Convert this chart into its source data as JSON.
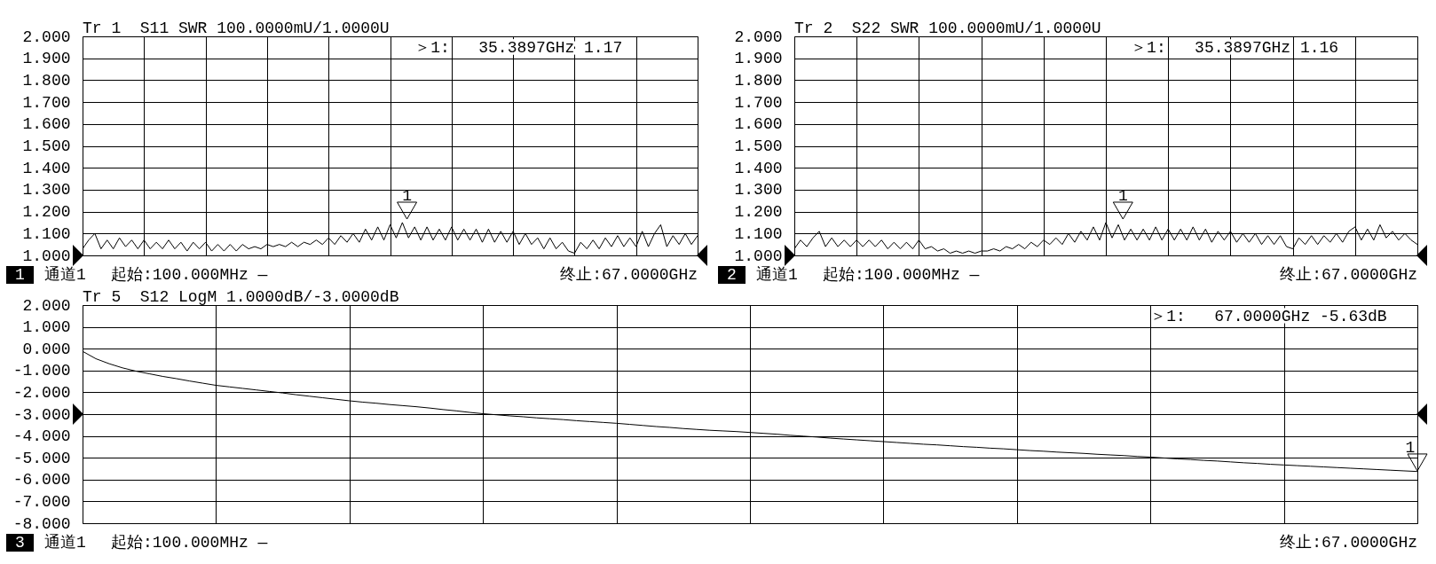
{
  "chart_data": [
    {
      "type": "line",
      "title": "Tr 1  S11 SWR 100.0000mU/1.0000U",
      "categories": [
        null,
        null,
        null,
        null,
        null,
        null,
        null,
        null,
        null,
        null,
        null,
        null,
        null,
        null,
        null,
        null,
        null,
        null,
        null,
        null,
        null,
        null,
        null,
        null,
        null,
        null,
        null,
        null,
        null,
        null,
        null,
        null,
        null,
        null,
        null,
        null,
        null,
        null,
        null,
        null,
        null,
        null,
        null,
        null,
        null,
        null,
        null,
        null,
        null,
        null,
        null,
        null,
        null,
        null,
        null,
        null,
        null,
        null,
        null,
        null,
        null,
        null,
        null,
        null,
        null,
        null,
        null,
        null,
        null,
        null,
        null,
        null,
        null,
        null,
        null,
        null,
        null,
        null,
        null,
        null,
        null,
        null,
        null,
        null,
        null,
        null,
        null,
        null,
        null,
        null,
        null,
        null,
        null,
        null,
        null,
        null,
        null,
        null,
        null,
        null,
        null
      ],
      "values": [
        1.03,
        1.07,
        1.1,
        1.03,
        1.07,
        1.03,
        1.08,
        1.04,
        1.07,
        1.03,
        1.07,
        1.03,
        1.06,
        1.03,
        1.07,
        1.03,
        1.06,
        1.02,
        1.06,
        1.03,
        1.06,
        1.02,
        1.05,
        1.02,
        1.05,
        1.02,
        1.05,
        1.03,
        1.04,
        1.03,
        1.05,
        1.04,
        1.05,
        1.04,
        1.06,
        1.04,
        1.06,
        1.05,
        1.07,
        1.05,
        1.08,
        1.05,
        1.09,
        1.06,
        1.1,
        1.06,
        1.12,
        1.07,
        1.13,
        1.07,
        1.14,
        1.08,
        1.15,
        1.08,
        1.13,
        1.07,
        1.13,
        1.07,
        1.12,
        1.07,
        1.13,
        1.07,
        1.12,
        1.07,
        1.12,
        1.06,
        1.12,
        1.06,
        1.11,
        1.06,
        1.11,
        1.05,
        1.1,
        1.05,
        1.08,
        1.03,
        1.08,
        1.03,
        1.06,
        1.02,
        1.01,
        1.06,
        1.03,
        1.07,
        1.03,
        1.08,
        1.04,
        1.09,
        1.04,
        1.08,
        1.04,
        1.11,
        1.04,
        1.1,
        1.14,
        1.04,
        1.09,
        1.05,
        1.1,
        1.05,
        1.09
      ],
      "color": "#000000",
      "ylim": [
        1,
        2
      ],
      "yticks": [
        {
          "value": 1,
          "label": "1.000"
        },
        {
          "value": 1.1,
          "label": "1.100"
        },
        {
          "value": 1.2,
          "label": "1.200"
        },
        {
          "value": 1.3,
          "label": "1.300"
        },
        {
          "value": 1.4,
          "label": "1.400"
        },
        {
          "value": 1.5,
          "label": "1.500"
        },
        {
          "value": 1.6,
          "label": "1.600"
        },
        {
          "value": 1.7,
          "label": "1.700"
        },
        {
          "value": 1.8,
          "label": "1.800"
        },
        {
          "value": 1.9,
          "label": "1.900"
        },
        {
          "value": 2,
          "label": "2.000"
        }
      ],
      "grid": true,
      "tick_labels": "y",
      "annotations": [
        "1",
        "通道1",
        "起始:100.000MHz —",
        "终止:67.0000GHz",
        "＞1:   35.3897GHz 1.17",
        "1"
      ]
    },
    {
      "type": "line",
      "title": "Tr 2  S22 SWR 100.0000mU/1.0000U",
      "categories": [
        null,
        null,
        null,
        null,
        null,
        null,
        null,
        null,
        null,
        null,
        null,
        null,
        null,
        null,
        null,
        null,
        null,
        null,
        null,
        null,
        null,
        null,
        null,
        null,
        null,
        null,
        null,
        null,
        null,
        null,
        null,
        null,
        null,
        null,
        null,
        null,
        null,
        null,
        null,
        null,
        null,
        null,
        null,
        null,
        null,
        null,
        null,
        null,
        null,
        null,
        null,
        null,
        null,
        null,
        null,
        null,
        null,
        null,
        null,
        null,
        null,
        null,
        null,
        null,
        null,
        null,
        null,
        null,
        null,
        null,
        null,
        null,
        null,
        null,
        null,
        null,
        null,
        null,
        null,
        null,
        null,
        null,
        null,
        null,
        null,
        null,
        null,
        null,
        null,
        null,
        null,
        null,
        null,
        null,
        null,
        null,
        null,
        null,
        null,
        null,
        null
      ],
      "values": [
        1.03,
        1.07,
        1.04,
        1.08,
        1.11,
        1.04,
        1.08,
        1.04,
        1.07,
        1.04,
        1.07,
        1.04,
        1.07,
        1.04,
        1.07,
        1.03,
        1.06,
        1.03,
        1.06,
        1.03,
        1.07,
        1.03,
        1.04,
        1.02,
        1.03,
        1.01,
        1.02,
        1.01,
        1.02,
        1.01,
        1.02,
        1.02,
        1.03,
        1.02,
        1.04,
        1.03,
        1.05,
        1.03,
        1.06,
        1.04,
        1.07,
        1.05,
        1.08,
        1.05,
        1.1,
        1.06,
        1.11,
        1.07,
        1.13,
        1.07,
        1.15,
        1.08,
        1.14,
        1.07,
        1.12,
        1.07,
        1.12,
        1.07,
        1.13,
        1.07,
        1.12,
        1.07,
        1.12,
        1.07,
        1.13,
        1.07,
        1.12,
        1.06,
        1.11,
        1.07,
        1.11,
        1.06,
        1.1,
        1.06,
        1.1,
        1.05,
        1.09,
        1.05,
        1.09,
        1.04,
        1.03,
        1.08,
        1.05,
        1.09,
        1.05,
        1.09,
        1.06,
        1.1,
        1.06,
        1.11,
        1.13,
        1.07,
        1.12,
        1.07,
        1.14,
        1.08,
        1.11,
        1.07,
        1.1,
        1.07,
        1.05
      ],
      "color": "#000000",
      "ylim": [
        1,
        2
      ],
      "yticks": [
        {
          "value": 1,
          "label": "1.000"
        },
        {
          "value": 1.1,
          "label": "1.100"
        },
        {
          "value": 1.2,
          "label": "1.200"
        },
        {
          "value": 1.3,
          "label": "1.300"
        },
        {
          "value": 1.4,
          "label": "1.400"
        },
        {
          "value": 1.5,
          "label": "1.500"
        },
        {
          "value": 1.6,
          "label": "1.600"
        },
        {
          "value": 1.7,
          "label": "1.700"
        },
        {
          "value": 1.8,
          "label": "1.800"
        },
        {
          "value": 1.9,
          "label": "1.900"
        },
        {
          "value": 2,
          "label": "2.000"
        }
      ],
      "grid": true,
      "tick_labels": "y",
      "annotations": [
        "2",
        "通道1",
        "起始:100.000MHz —",
        "终止:67.0000GHz",
        "＞1:   35.3897GHz 1.16",
        "1"
      ]
    },
    {
      "type": "line",
      "title": "Tr 5  S12 LogM 1.0000dB/-3.0000dB",
      "categories": [
        null,
        null,
        null,
        null,
        null,
        null,
        null,
        null,
        null,
        null,
        null,
        null,
        null,
        null,
        null,
        null,
        null,
        null,
        null,
        null,
        null,
        null,
        null,
        null,
        null,
        null,
        null,
        null,
        null,
        null,
        null,
        null,
        null,
        null,
        null,
        null,
        null,
        null,
        null,
        null,
        null,
        null,
        null,
        null,
        null,
        null,
        null,
        null,
        null,
        null,
        null,
        null,
        null,
        null,
        null,
        null,
        null,
        null,
        null,
        null,
        null,
        null,
        null,
        null,
        null,
        null,
        null,
        null,
        null,
        null,
        null,
        null,
        null,
        null,
        null,
        null,
        null,
        null,
        null,
        null,
        null,
        null,
        null,
        null,
        null,
        null,
        null,
        null,
        null,
        null,
        null,
        null,
        null,
        null,
        null,
        null,
        null,
        null,
        null,
        null,
        null
      ],
      "values": [
        -0.12,
        -0.46,
        -0.69,
        -0.88,
        -1.03,
        -1.15,
        -1.27,
        -1.37,
        -1.48,
        -1.58,
        -1.68,
        -1.75,
        -1.82,
        -1.89,
        -1.96,
        -2.03,
        -2.11,
        -2.18,
        -2.25,
        -2.32,
        -2.39,
        -2.45,
        -2.5,
        -2.56,
        -2.61,
        -2.66,
        -2.72,
        -2.79,
        -2.85,
        -2.92,
        -2.98,
        -3.03,
        -3.08,
        -3.12,
        -3.17,
        -3.21,
        -3.25,
        -3.3,
        -3.34,
        -3.38,
        -3.42,
        -3.47,
        -3.52,
        -3.57,
        -3.61,
        -3.66,
        -3.7,
        -3.74,
        -3.77,
        -3.8,
        -3.84,
        -3.88,
        -3.92,
        -3.97,
        -4.01,
        -4.05,
        -4.1,
        -4.14,
        -4.18,
        -4.22,
        -4.26,
        -4.3,
        -4.34,
        -4.38,
        -4.41,
        -4.45,
        -4.49,
        -4.52,
        -4.56,
        -4.59,
        -4.63,
        -4.67,
        -4.7,
        -4.74,
        -4.77,
        -4.8,
        -4.84,
        -4.87,
        -4.9,
        -4.94,
        -4.97,
        -5.01,
        -5.05,
        -5.08,
        -5.12,
        -5.15,
        -5.19,
        -5.23,
        -5.26,
        -5.3,
        -5.33,
        -5.36,
        -5.39,
        -5.42,
        -5.45,
        -5.48,
        -5.51,
        -5.54,
        -5.57,
        -5.6,
        -5.63
      ],
      "color": "#000000",
      "ylim": [
        -8,
        2
      ],
      "yticks": [
        {
          "value": -8,
          "label": "-8.000"
        },
        {
          "value": -7,
          "label": "-7.000"
        },
        {
          "value": -6,
          "label": "-6.000"
        },
        {
          "value": -5,
          "label": "-5.000"
        },
        {
          "value": -4,
          "label": "-4.000"
        },
        {
          "value": -3,
          "label": "-3.000"
        },
        {
          "value": -2,
          "label": "-2.000"
        },
        {
          "value": -1,
          "label": "-1.000"
        },
        {
          "value": 0,
          "label": "0.000"
        },
        {
          "value": 1,
          "label": "1.000"
        },
        {
          "value": 2,
          "label": "2.000"
        }
      ],
      "grid": true,
      "tick_labels": "y",
      "annotations": [
        "3",
        "通道1",
        "起始:100.000MHz —",
        "终止:67.0000GHz",
        "＞1:   67.0000GHz -5.63dB",
        "1"
      ]
    }
  ]
}
